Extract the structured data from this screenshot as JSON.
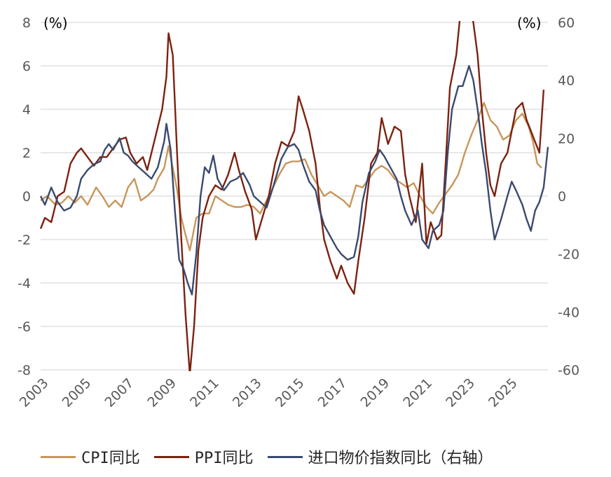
{
  "chart_data": {
    "type": "line",
    "left_axis_unit": "(%)",
    "right_axis_unit": "(%)",
    "left_axis": {
      "min": -8,
      "max": 8,
      "ticks": [
        "8",
        "6",
        "4",
        "2",
        "0",
        "-2",
        "-4",
        "-6",
        "-8"
      ]
    },
    "right_axis": {
      "min": -60,
      "max": 60,
      "ticks": [
        "60",
        "40",
        "20",
        "0",
        "-20",
        "-40",
        "-60"
      ]
    },
    "x_axis": {
      "min": 2003,
      "max": 2026.5,
      "ticks": [
        "2003",
        "2005",
        "2007",
        "2009",
        "2011",
        "2013",
        "2015",
        "2017",
        "2019",
        "2021",
        "2023",
        "2025"
      ]
    },
    "grid": true,
    "legend_position": "bottom",
    "series": [
      {
        "name": "CPI同比",
        "axis": "left",
        "color": "#C8965A",
        "points": [
          [
            2003.0,
            -0.2
          ],
          [
            2003.3,
            0.0
          ],
          [
            2003.7,
            -0.4
          ],
          [
            2004.0,
            -0.3
          ],
          [
            2004.3,
            0.0
          ],
          [
            2004.6,
            -0.3
          ],
          [
            2004.9,
            0.0
          ],
          [
            2005.2,
            -0.4
          ],
          [
            2005.6,
            0.4
          ],
          [
            2005.9,
            0.0
          ],
          [
            2006.2,
            -0.5
          ],
          [
            2006.5,
            -0.2
          ],
          [
            2006.8,
            -0.5
          ],
          [
            2007.1,
            0.4
          ],
          [
            2007.4,
            0.8
          ],
          [
            2007.7,
            -0.2
          ],
          [
            2008.0,
            0.0
          ],
          [
            2008.3,
            0.3
          ],
          [
            2008.5,
            0.8
          ],
          [
            2008.8,
            1.3
          ],
          [
            2009.0,
            2.3
          ],
          [
            2009.2,
            1.3
          ],
          [
            2009.4,
            0.3
          ],
          [
            2009.6,
            -1.0
          ],
          [
            2009.8,
            -1.8
          ],
          [
            2010.0,
            -2.5
          ],
          [
            2010.3,
            -1.0
          ],
          [
            2010.6,
            -0.8
          ],
          [
            2010.9,
            -0.8
          ],
          [
            2011.2,
            0.0
          ],
          [
            2011.5,
            -0.2
          ],
          [
            2011.8,
            -0.4
          ],
          [
            2012.1,
            -0.5
          ],
          [
            2012.4,
            -0.5
          ],
          [
            2012.7,
            -0.4
          ],
          [
            2013.0,
            -0.5
          ],
          [
            2013.3,
            -0.8
          ],
          [
            2013.6,
            -0.2
          ],
          [
            2013.9,
            0.4
          ],
          [
            2014.2,
            1.0
          ],
          [
            2014.5,
            1.5
          ],
          [
            2014.8,
            1.6
          ],
          [
            2015.1,
            1.6
          ],
          [
            2015.4,
            1.7
          ],
          [
            2015.7,
            1.0
          ],
          [
            2016.0,
            0.5
          ],
          [
            2016.3,
            0.0
          ],
          [
            2016.6,
            0.2
          ],
          [
            2016.9,
            0.0
          ],
          [
            2017.2,
            -0.2
          ],
          [
            2017.5,
            -0.5
          ],
          [
            2017.8,
            0.5
          ],
          [
            2018.1,
            0.4
          ],
          [
            2018.4,
            0.8
          ],
          [
            2018.7,
            1.2
          ],
          [
            2019.0,
            1.4
          ],
          [
            2019.3,
            1.2
          ],
          [
            2019.6,
            0.8
          ],
          [
            2019.9,
            0.6
          ],
          [
            2020.2,
            0.4
          ],
          [
            2020.5,
            0.6
          ],
          [
            2020.8,
            0.0
          ],
          [
            2021.1,
            -0.5
          ],
          [
            2021.4,
            -0.8
          ],
          [
            2021.7,
            -0.3
          ],
          [
            2022.0,
            0.1
          ],
          [
            2022.3,
            0.5
          ],
          [
            2022.6,
            1.0
          ],
          [
            2022.9,
            2.0
          ],
          [
            2023.2,
            2.8
          ],
          [
            2023.5,
            3.5
          ],
          [
            2023.8,
            4.3
          ],
          [
            2024.1,
            3.5
          ],
          [
            2024.4,
            3.2
          ],
          [
            2024.7,
            2.6
          ],
          [
            2025.0,
            2.8
          ],
          [
            2025.3,
            3.5
          ],
          [
            2025.6,
            3.8
          ],
          [
            2025.9,
            3.2
          ],
          [
            2026.1,
            2.5
          ],
          [
            2026.3,
            1.5
          ],
          [
            2026.5,
            1.3
          ]
        ]
      },
      {
        "name": "PPI同比",
        "axis": "left",
        "color": "#7B2210",
        "points": [
          [
            2003.0,
            -1.5
          ],
          [
            2003.2,
            -1.0
          ],
          [
            2003.5,
            -1.2
          ],
          [
            2003.8,
            0.0
          ],
          [
            2004.1,
            0.2
          ],
          [
            2004.4,
            1.5
          ],
          [
            2004.7,
            2.0
          ],
          [
            2004.9,
            2.2
          ],
          [
            2005.2,
            1.8
          ],
          [
            2005.5,
            1.4
          ],
          [
            2005.8,
            1.8
          ],
          [
            2006.1,
            1.8
          ],
          [
            2006.4,
            2.2
          ],
          [
            2006.7,
            2.6
          ],
          [
            2007.0,
            2.7
          ],
          [
            2007.2,
            2.0
          ],
          [
            2007.5,
            1.5
          ],
          [
            2007.8,
            1.8
          ],
          [
            2008.0,
            1.2
          ],
          [
            2008.2,
            2.0
          ],
          [
            2008.4,
            2.8
          ],
          [
            2008.7,
            4.0
          ],
          [
            2008.9,
            5.5
          ],
          [
            2009.0,
            7.5
          ],
          [
            2009.2,
            6.5
          ],
          [
            2009.4,
            2.0
          ],
          [
            2009.6,
            -2.0
          ],
          [
            2009.8,
            -5.5
          ],
          [
            2010.0,
            -8.2
          ],
          [
            2010.2,
            -6.0
          ],
          [
            2010.4,
            -2.5
          ],
          [
            2010.6,
            -1.0
          ],
          [
            2010.9,
            0.0
          ],
          [
            2011.2,
            0.5
          ],
          [
            2011.5,
            0.3
          ],
          [
            2011.8,
            1.0
          ],
          [
            2012.1,
            2.0
          ],
          [
            2012.3,
            1.2
          ],
          [
            2012.6,
            0.2
          ],
          [
            2012.9,
            -0.6
          ],
          [
            2013.1,
            -2.0
          ],
          [
            2013.4,
            -1.0
          ],
          [
            2013.7,
            0.0
          ],
          [
            2014.0,
            1.5
          ],
          [
            2014.3,
            2.5
          ],
          [
            2014.6,
            2.3
          ],
          [
            2014.9,
            3.0
          ],
          [
            2015.1,
            4.6
          ],
          [
            2015.3,
            4.0
          ],
          [
            2015.6,
            3.0
          ],
          [
            2015.9,
            1.5
          ],
          [
            2016.1,
            -0.5
          ],
          [
            2016.3,
            -2.0
          ],
          [
            2016.6,
            -3.0
          ],
          [
            2016.9,
            -3.8
          ],
          [
            2017.1,
            -3.2
          ],
          [
            2017.4,
            -4.0
          ],
          [
            2017.7,
            -4.5
          ],
          [
            2017.9,
            -3.0
          ],
          [
            2018.2,
            -1.0
          ],
          [
            2018.5,
            1.5
          ],
          [
            2018.8,
            2.0
          ],
          [
            2019.0,
            3.6
          ],
          [
            2019.3,
            2.4
          ],
          [
            2019.6,
            3.2
          ],
          [
            2019.9,
            3.0
          ],
          [
            2020.1,
            1.0
          ],
          [
            2020.3,
            0.0
          ],
          [
            2020.6,
            -1.2
          ],
          [
            2020.9,
            1.5
          ],
          [
            2021.1,
            -2.2
          ],
          [
            2021.3,
            -1.2
          ],
          [
            2021.6,
            -2.0
          ],
          [
            2021.8,
            -1.8
          ],
          [
            2022.0,
            1.5
          ],
          [
            2022.2,
            5.0
          ],
          [
            2022.5,
            6.5
          ],
          [
            2022.7,
            8.5
          ],
          [
            2022.9,
            10.5
          ],
          [
            2023.1,
            9.0
          ],
          [
            2023.3,
            8.0
          ],
          [
            2023.5,
            6.5
          ],
          [
            2023.7,
            4.0
          ],
          [
            2023.9,
            2.0
          ],
          [
            2024.1,
            0.5
          ],
          [
            2024.3,
            0.0
          ],
          [
            2024.6,
            1.5
          ],
          [
            2024.9,
            2.0
          ],
          [
            2025.1,
            3.0
          ],
          [
            2025.3,
            4.0
          ],
          [
            2025.6,
            4.3
          ],
          [
            2025.8,
            3.5
          ],
          [
            2026.0,
            3.0
          ],
          [
            2026.2,
            2.5
          ],
          [
            2026.4,
            2.0
          ],
          [
            2026.6,
            4.9
          ]
        ]
      },
      {
        "name": "进口物价指数同比（右轴）",
        "axis": "right",
        "color": "#3A4A6E",
        "points": [
          [
            2003.0,
            0.0
          ],
          [
            2003.2,
            -3.0
          ],
          [
            2003.5,
            3.0
          ],
          [
            2003.8,
            -2.0
          ],
          [
            2004.1,
            -5.0
          ],
          [
            2004.4,
            -4.0
          ],
          [
            2004.7,
            0.0
          ],
          [
            2004.9,
            6.0
          ],
          [
            2005.2,
            9.0
          ],
          [
            2005.5,
            11.0
          ],
          [
            2005.8,
            12.0
          ],
          [
            2006.0,
            16.0
          ],
          [
            2006.2,
            18.0
          ],
          [
            2006.4,
            16.0
          ],
          [
            2006.7,
            20.0
          ],
          [
            2006.9,
            15.0
          ],
          [
            2007.1,
            14.0
          ],
          [
            2007.3,
            12.0
          ],
          [
            2007.6,
            10.0
          ],
          [
            2007.9,
            8.0
          ],
          [
            2008.2,
            6.0
          ],
          [
            2008.5,
            10.0
          ],
          [
            2008.8,
            19.0
          ],
          [
            2008.9,
            25.0
          ],
          [
            2009.1,
            16.0
          ],
          [
            2009.3,
            -5.0
          ],
          [
            2009.5,
            -22.0
          ],
          [
            2009.7,
            -25.0
          ],
          [
            2009.9,
            -30.0
          ],
          [
            2010.1,
            -34.0
          ],
          [
            2010.3,
            -20.0
          ],
          [
            2010.5,
            0.0
          ],
          [
            2010.7,
            10.0
          ],
          [
            2010.9,
            8.0
          ],
          [
            2011.1,
            14.0
          ],
          [
            2011.3,
            6.0
          ],
          [
            2011.6,
            2.0
          ],
          [
            2011.9,
            5.0
          ],
          [
            2012.2,
            6.0
          ],
          [
            2012.5,
            8.0
          ],
          [
            2012.8,
            4.0
          ],
          [
            2013.0,
            0.0
          ],
          [
            2013.3,
            -2.0
          ],
          [
            2013.6,
            -4.0
          ],
          [
            2013.9,
            3.0
          ],
          [
            2014.1,
            8.0
          ],
          [
            2014.3,
            13.0
          ],
          [
            2014.6,
            17.0
          ],
          [
            2014.9,
            18.0
          ],
          [
            2015.1,
            16.0
          ],
          [
            2015.3,
            11.0
          ],
          [
            2015.6,
            5.0
          ],
          [
            2015.9,
            2.0
          ],
          [
            2016.1,
            -5.0
          ],
          [
            2016.3,
            -10.0
          ],
          [
            2016.6,
            -14.0
          ],
          [
            2016.9,
            -18.0
          ],
          [
            2017.1,
            -20.0
          ],
          [
            2017.4,
            -22.0
          ],
          [
            2017.7,
            -21.0
          ],
          [
            2017.9,
            -14.0
          ],
          [
            2018.1,
            -2.0
          ],
          [
            2018.4,
            8.0
          ],
          [
            2018.7,
            12.0
          ],
          [
            2018.9,
            16.0
          ],
          [
            2019.1,
            14.0
          ],
          [
            2019.4,
            10.0
          ],
          [
            2019.7,
            6.0
          ],
          [
            2019.9,
            0.0
          ],
          [
            2020.1,
            -5.0
          ],
          [
            2020.4,
            -10.0
          ],
          [
            2020.7,
            -5.0
          ],
          [
            2020.9,
            -15.0
          ],
          [
            2021.2,
            -18.0
          ],
          [
            2021.4,
            -12.0
          ],
          [
            2021.7,
            -10.0
          ],
          [
            2021.9,
            -5.0
          ],
          [
            2022.1,
            15.0
          ],
          [
            2022.3,
            30.0
          ],
          [
            2022.6,
            38.0
          ],
          [
            2022.8,
            38.0
          ],
          [
            2023.1,
            45.0
          ],
          [
            2023.3,
            40.0
          ],
          [
            2023.5,
            30.0
          ],
          [
            2023.7,
            18.0
          ],
          [
            2023.9,
            8.0
          ],
          [
            2024.1,
            -5.0
          ],
          [
            2024.3,
            -15.0
          ],
          [
            2024.6,
            -8.0
          ],
          [
            2024.9,
            0.0
          ],
          [
            2025.1,
            5.0
          ],
          [
            2025.3,
            2.0
          ],
          [
            2025.6,
            -3.0
          ],
          [
            2025.8,
            -8.0
          ],
          [
            2026.0,
            -12.0
          ],
          [
            2026.2,
            -5.0
          ],
          [
            2026.4,
            -2.0
          ],
          [
            2026.6,
            3.0
          ],
          [
            2026.8,
            17.0
          ]
        ]
      }
    ]
  }
}
